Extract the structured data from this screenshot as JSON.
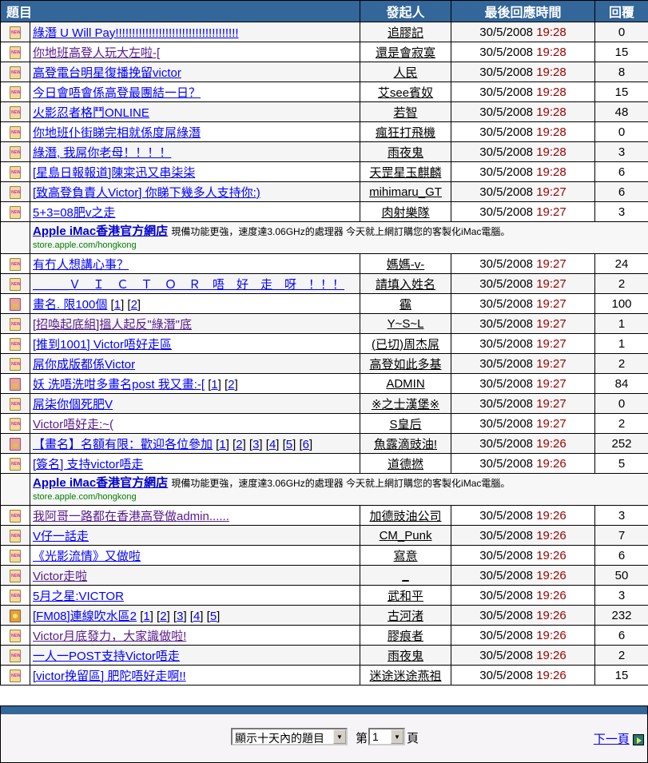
{
  "header": {
    "title": "題目",
    "author": "發起人",
    "last_reply": "最後回應時間",
    "replies": "回覆"
  },
  "colors": {
    "header_bg": "#336699",
    "time_color": "#990000",
    "link": "#0000ff",
    "visited": "#551a8b"
  },
  "ad": {
    "title": "Apple iMac香港官方網店",
    "desc": "現備功能更強，速度達3.06GHz的處理器 今天就上網訂購您的客製化iMac電腦。",
    "url": "store.apple.com/hongkong"
  },
  "rows": [
    {
      "type": "topic",
      "icon": "new-folder",
      "title": "綠潛 U Will Pay!!!!!!!!!!!!!!!!!!!!!!!!!!!!!!!!!!!!!",
      "author": "追膠記",
      "date": "30/5/2008",
      "time": "19:28",
      "replies": "0"
    },
    {
      "type": "topic",
      "icon": "new-folder",
      "title": "你地班高登人玩大左啦-[",
      "author": "還是會寂寞",
      "date": "30/5/2008",
      "time": "19:28",
      "replies": "15",
      "visited": true
    },
    {
      "type": "topic",
      "icon": "new-folder",
      "title": "高登電台明星復播挽留victor",
      "author": "人民",
      "date": "30/5/2008",
      "time": "19:28",
      "replies": "8"
    },
    {
      "type": "topic",
      "icon": "new-folder",
      "title": "今日會唔會係高登最團結一日？",
      "author": "艾see賓奴",
      "date": "30/5/2008",
      "time": "19:28",
      "replies": "15"
    },
    {
      "type": "topic",
      "icon": "new-folder",
      "title": "火影忍者格鬥ONLINE",
      "author": "若智",
      "date": "30/5/2008",
      "time": "19:28",
      "replies": "48"
    },
    {
      "type": "topic",
      "icon": "new-folder",
      "title": "你地班仆街睇完相就係度屌綠潛",
      "author": "瘋狂打飛機",
      "date": "30/5/2008",
      "time": "19:28",
      "replies": "0"
    },
    {
      "type": "topic",
      "icon": "new-folder",
      "title": "綠潛, 我屌你老母！！！！",
      "author": "雨夜鬼",
      "date": "30/5/2008",
      "time": "19:28",
      "replies": "3"
    },
    {
      "type": "topic",
      "icon": "new-folder",
      "title": "[星島日報報道]陳寀迅又串柒柒",
      "author": "天罡星玉麒麟",
      "date": "30/5/2008",
      "time": "19:28",
      "replies": "6"
    },
    {
      "type": "topic",
      "icon": "new-folder",
      "title": "[致高登負責人Victor] 你睇下幾多人支持你:)",
      "author": "mihimaru_GT",
      "date": "30/5/2008",
      "time": "19:27",
      "replies": "6"
    },
    {
      "type": "topic",
      "icon": "new-folder",
      "title": "5+3=08肥v之走",
      "author": "肉射樂隊",
      "date": "30/5/2008",
      "time": "19:27",
      "replies": "3"
    },
    {
      "type": "ad"
    },
    {
      "type": "topic",
      "icon": "new-folder",
      "title": "有冇人想講心事？",
      "author": "媽媽-v-",
      "date": "30/5/2008",
      "time": "19:27",
      "replies": "24"
    },
    {
      "type": "topic",
      "icon": "new-folder",
      "title": "＿＿＿Ｖ　Ｉ　Ｃ　Ｔ　Ｏ　Ｒ　唔　好　走　呀　！！！",
      "author": "請填入姓名",
      "date": "30/5/2008",
      "time": "19:27",
      "replies": "2"
    },
    {
      "type": "topic",
      "icon": "hot-folder",
      "title": "畫名. 限100個",
      "pages": [
        "1",
        "2"
      ],
      "author": "靍",
      "date": "30/5/2008",
      "time": "19:27",
      "replies": "100"
    },
    {
      "type": "topic",
      "icon": "new-folder",
      "title": "[招喚起底組]搵人起反\"綠潛\"底",
      "author": "Y~S~L",
      "date": "30/5/2008",
      "time": "19:27",
      "replies": "1",
      "visited": true
    },
    {
      "type": "topic",
      "icon": "new-folder",
      "title": "[推到1001] Victor唔好走區",
      "author": "(已切)周杰屌",
      "date": "30/5/2008",
      "time": "19:27",
      "replies": "1"
    },
    {
      "type": "topic",
      "icon": "new-folder",
      "title": "屌你成版都係Victor",
      "author": "高登如此多基",
      "date": "30/5/2008",
      "time": "19:27",
      "replies": "2"
    },
    {
      "type": "topic",
      "icon": "hot-folder",
      "title": "妖 洗唔洗咁多畫名post 我又畫:-[",
      "pages": [
        "1",
        "2"
      ],
      "author": "ADMIN",
      "date": "30/5/2008",
      "time": "19:27",
      "replies": "84"
    },
    {
      "type": "topic",
      "icon": "new-folder",
      "title": "屌柒你個死肥V",
      "author": "※之士漢堡※",
      "date": "30/5/2008",
      "time": "19:27",
      "replies": "0"
    },
    {
      "type": "topic",
      "icon": "new-folder",
      "title": "Victor唔好走:~(",
      "author": "S皇后",
      "date": "30/5/2008",
      "time": "19:27",
      "replies": "2",
      "visited": true
    },
    {
      "type": "topic",
      "icon": "hot-folder",
      "title": "【畫名】名額有限：歡迎各位參加",
      "pages": [
        "1",
        "2",
        "3",
        "4",
        "5",
        "6"
      ],
      "author": "魚露滴豉油!",
      "date": "30/5/2008",
      "time": "19:26",
      "replies": "252"
    },
    {
      "type": "topic",
      "icon": "new-folder",
      "title": "[簽名] 支持victor唔走",
      "author": "道德撚",
      "date": "30/5/2008",
      "time": "19:26",
      "replies": "5"
    },
    {
      "type": "ad"
    },
    {
      "type": "topic",
      "icon": "new-folder",
      "title": "我阿哥一路都在香港高登做admin......",
      "author": "加德豉油公司",
      "date": "30/5/2008",
      "time": "19:26",
      "replies": "3",
      "visited": true
    },
    {
      "type": "topic",
      "icon": "new-folder",
      "title": "V仔一話走",
      "author": "CM_Punk",
      "date": "30/5/2008",
      "time": "19:26",
      "replies": "7"
    },
    {
      "type": "topic",
      "icon": "new-folder",
      "title": "《光影流情》又做啦",
      "author": "寫意",
      "date": "30/5/2008",
      "time": "19:26",
      "replies": "6"
    },
    {
      "type": "topic",
      "icon": "new-folder",
      "title": "Victor走啦",
      "author": "_",
      "date": "30/5/2008",
      "time": "19:26",
      "replies": "50",
      "visited": true
    },
    {
      "type": "topic",
      "icon": "new-folder",
      "title": "5月之星:VICTOR",
      "author": "武和平",
      "date": "30/5/2008",
      "time": "19:26",
      "replies": "3"
    },
    {
      "type": "topic",
      "icon": "locked-folder",
      "title": "[FM08]連線吹水區2",
      "pages": [
        "1",
        "2",
        "3",
        "4",
        "5"
      ],
      "author": "古河渚",
      "date": "30/5/2008",
      "time": "19:26",
      "replies": "232"
    },
    {
      "type": "topic",
      "icon": "new-folder",
      "title": "Victor月底發力，大家識做啦!",
      "author": "膠痕者",
      "date": "30/5/2008",
      "time": "19:26",
      "replies": "6",
      "visited": true
    },
    {
      "type": "topic",
      "icon": "new-folder",
      "title": "一人一POST支持Victor唔走",
      "author": "雨夜鬼",
      "date": "30/5/2008",
      "time": "19:26",
      "replies": "2"
    },
    {
      "type": "topic",
      "icon": "new-folder",
      "title": "[victor挽留區] 肥陀唔好走啊!!",
      "author": "迷途迷途燕祖",
      "date": "30/5/2008",
      "time": "19:26",
      "replies": "15"
    }
  ],
  "footer": {
    "filter_select": "顯示十天內的題目",
    "page_prefix": "第",
    "page_value": "1",
    "page_suffix": "頁",
    "next_label": "下一頁"
  }
}
